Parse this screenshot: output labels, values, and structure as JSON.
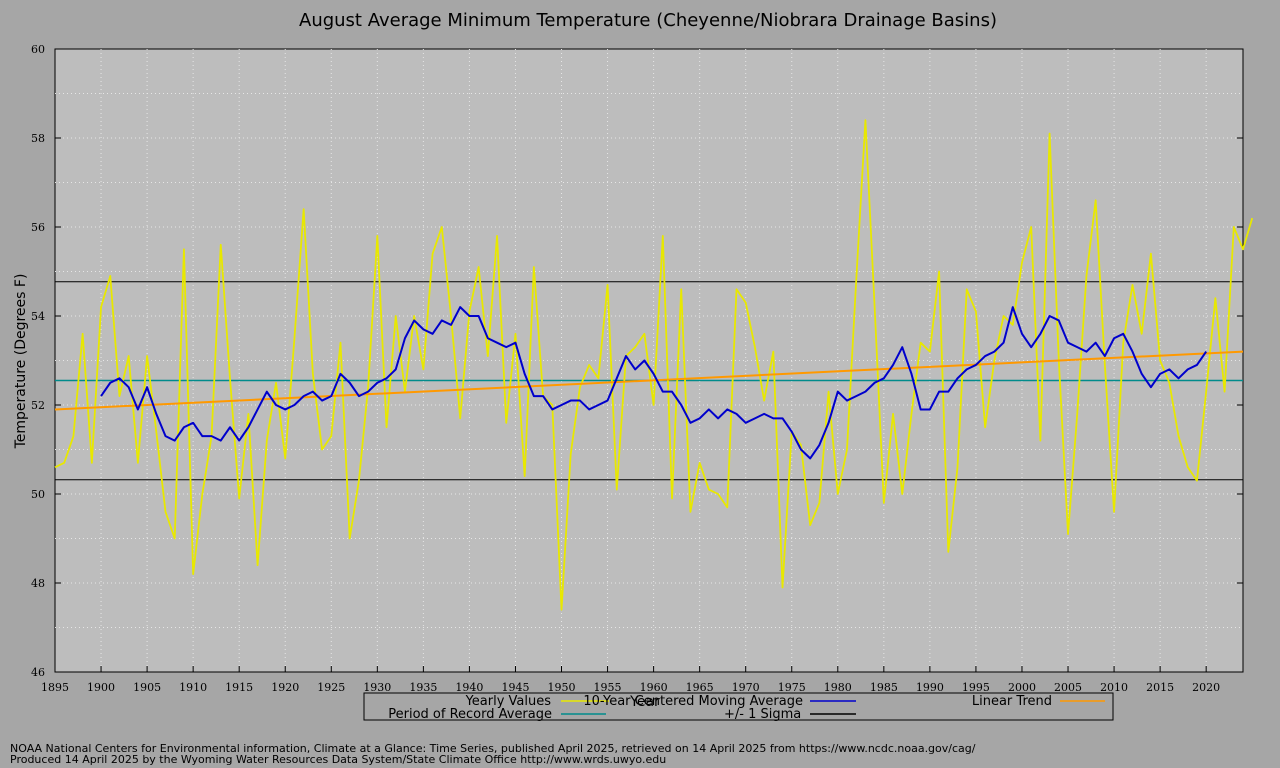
{
  "chart_data": {
    "type": "line",
    "title": "August Average Minimum Temperature (Cheyenne/Niobrara Drainage Basins)",
    "xlabel": "Year",
    "ylabel": "Temperature (Degrees F)",
    "xlim": [
      1895,
      2024
    ],
    "ylim": [
      46,
      60
    ],
    "x_ticks": [
      1895,
      1900,
      1905,
      1910,
      1915,
      1920,
      1925,
      1930,
      1935,
      1940,
      1945,
      1950,
      1955,
      1960,
      1965,
      1970,
      1975,
      1980,
      1985,
      1990,
      1995,
      2000,
      2005,
      2010,
      2015,
      2020
    ],
    "y_ticks": [
      46,
      48,
      50,
      52,
      54,
      56,
      58,
      60
    ],
    "grid": true,
    "legend": {
      "placement": "bottom",
      "entries": [
        {
          "label": "Yearly Values",
          "color": "#e8e800"
        },
        {
          "label": "10-Year Centered Moving Average",
          "color": "#0000cc"
        },
        {
          "label": "Linear Trend",
          "color": "#ff9900"
        },
        {
          "label": "Period of Record Average",
          "color": "#008b8b"
        },
        {
          "label": "+/- 1 Sigma",
          "color": "#000000"
        }
      ]
    },
    "series": [
      {
        "name": "Yearly Values",
        "color": "#e8e800",
        "x_start": 1895,
        "values": [
          50.6,
          50.7,
          51.3,
          53.6,
          50.7,
          54.2,
          54.9,
          52.2,
          53.1,
          50.7,
          53.1,
          51.4,
          49.6,
          49.0,
          55.5,
          48.2,
          50.0,
          51.3,
          55.6,
          52.6,
          49.9,
          51.8,
          48.4,
          51.2,
          52.5,
          50.8,
          53.5,
          56.4,
          52.7,
          51.0,
          51.3,
          53.4,
          49.0,
          50.3,
          52.4,
          55.8,
          51.5,
          54.0,
          52.3,
          54.0,
          52.8,
          55.4,
          56.0,
          54.0,
          51.7,
          54.1,
          55.1,
          53.1,
          55.8,
          51.6,
          53.6,
          50.4,
          55.1,
          52.2,
          52.0,
          47.4,
          50.9,
          52.4,
          52.9,
          52.6,
          54.7,
          50.1,
          53.1,
          53.3,
          53.6,
          52.0,
          55.8,
          49.9,
          54.6,
          49.6,
          50.7,
          50.1,
          50.0,
          49.7,
          54.6,
          54.3,
          53.3,
          52.1,
          53.2,
          47.9,
          51.4,
          51.1,
          49.3,
          49.8,
          52.3,
          50.0,
          51.0,
          54.8,
          58.4,
          54.2,
          49.8,
          51.8,
          50.0,
          51.8,
          53.4,
          53.2,
          55.0,
          48.7,
          50.6,
          54.6,
          54.1,
          51.5,
          53.0,
          54.0,
          53.8,
          55.2,
          56.0,
          51.2,
          58.1,
          53.0,
          49.1,
          51.8,
          54.9,
          56.6,
          52.9,
          49.6,
          53.4,
          54.7,
          53.6,
          55.4,
          53.0,
          52.5,
          51.3,
          50.6,
          50.3,
          52.3,
          54.4,
          52.3,
          56.0,
          55.5,
          56.2
        ]
      },
      {
        "name": "10-Year Centered Moving Average",
        "color": "#0000cc",
        "x_start": 1900,
        "values": [
          52.2,
          52.5,
          52.6,
          52.4,
          51.9,
          52.4,
          51.8,
          51.3,
          51.2,
          51.5,
          51.6,
          51.3,
          51.3,
          51.2,
          51.5,
          51.2,
          51.5,
          51.9,
          52.3,
          52.0,
          51.9,
          52.0,
          52.2,
          52.3,
          52.1,
          52.2,
          52.7,
          52.5,
          52.2,
          52.3,
          52.5,
          52.6,
          52.8,
          53.5,
          53.9,
          53.7,
          53.6,
          53.9,
          53.8,
          54.2,
          54.0,
          54.0,
          53.5,
          53.4,
          53.3,
          53.4,
          52.7,
          52.2,
          52.2,
          51.9,
          52.0,
          52.1,
          52.1,
          51.9,
          52.0,
          52.1,
          52.6,
          53.1,
          52.8,
          53.0,
          52.7,
          52.3,
          52.3,
          52.0,
          51.6,
          51.7,
          51.9,
          51.7,
          51.9,
          51.8,
          51.6,
          51.7,
          51.8,
          51.7,
          51.7,
          51.4,
          51.0,
          50.8,
          51.1,
          51.6,
          52.3,
          52.1,
          52.2,
          52.3,
          52.5,
          52.6,
          52.9,
          53.3,
          52.7,
          51.9,
          51.9,
          52.3,
          52.3,
          52.6,
          52.8,
          52.9,
          53.1,
          53.2,
          53.4,
          54.2,
          53.6,
          53.3,
          53.6,
          54.0,
          53.9,
          53.4,
          53.3,
          53.2,
          53.4,
          53.1,
          53.5,
          53.6,
          53.2,
          52.7,
          52.4,
          52.7,
          52.8,
          52.6,
          52.8,
          52.9,
          53.2
        ]
      },
      {
        "name": "Linear Trend",
        "color": "#ff9900",
        "x": [
          1895,
          2024
        ],
        "values": [
          51.9,
          53.2
        ]
      },
      {
        "name": "Period of Record Average",
        "color": "#008b8b",
        "value": 52.55
      },
      {
        "name": "+/- 1 Sigma",
        "color": "#000000",
        "upper": 54.77,
        "lower": 50.32
      }
    ]
  },
  "credits": {
    "line1": "NOAA National Centers for Environmental information, Climate at a Glance: Time Series, published April 2025, retrieved on 14 April 2025 from https://www.ncdc.noaa.gov/cag/",
    "line2": "Produced 14 April 2025 by the Wyoming Water Resources Data System/State Climate Office http://www.wrds.uwyo.edu"
  }
}
